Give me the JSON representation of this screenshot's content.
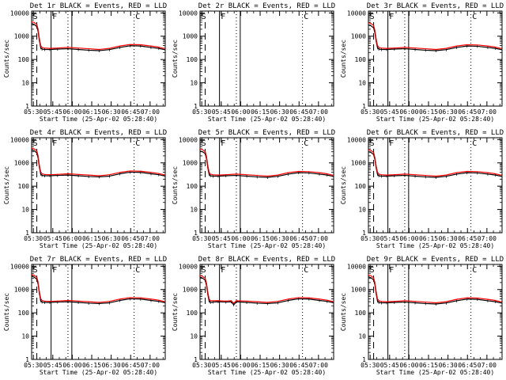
{
  "figure": {
    "background": "#ffffff",
    "event_color": "#000000",
    "lld_color": "#ff0000"
  },
  "common": {
    "xlabel": "Start Time (25-Apr-02 05:28:40)",
    "ylabel": "Counts/sec",
    "xtick_labels": [
      "05:30",
      "05:45",
      "06:00",
      "06:15",
      "06:30",
      "06:45",
      "07:00"
    ],
    "ytick_labels": [
      "1",
      "10",
      "100",
      "1000",
      "10000"
    ],
    "marker_labels": [
      "S",
      "F",
      "C"
    ]
  },
  "chart_data": [
    {
      "type": "line",
      "title": "Det 1r BLACK = Events, RED = LLD",
      "x_unit": "minutes after 05:28:40",
      "xlim": [
        0,
        103
      ],
      "ylim": [
        1,
        12000
      ],
      "y_scale": "log",
      "x": [
        0,
        2,
        4,
        5,
        6,
        7,
        8,
        10,
        14,
        20,
        28,
        36,
        44,
        52,
        60,
        68,
        76,
        84,
        92,
        98,
        103
      ],
      "series": [
        {
          "name": "Events",
          "color": "#000000",
          "values": [
            3500,
            3200,
            2600,
            1600,
            650,
            320,
            280,
            270,
            270,
            280,
            290,
            270,
            250,
            240,
            265,
            330,
            390,
            380,
            330,
            300,
            260
          ]
        },
        {
          "name": "LLD",
          "color": "#ff0000",
          "values": [
            4200,
            3900,
            3200,
            2000,
            800,
            400,
            330,
            310,
            300,
            310,
            330,
            310,
            290,
            270,
            300,
            380,
            440,
            430,
            380,
            340,
            290
          ]
        }
      ],
      "markers": {
        "dashed": [
          4
        ],
        "dotted": [
          28,
          79
        ],
        "solid": [
          15,
          31
        ],
        "labels": [
          {
            "text": "S",
            "x": 1
          },
          {
            "text": "F",
            "x": 16
          },
          {
            "text": "C",
            "x": 80
          }
        ]
      }
    },
    {
      "type": "line",
      "title": "Det 2r BLACK = Events, RED = LLD",
      "x_unit": "minutes after 05:28:40",
      "xlim": [
        0,
        103
      ],
      "ylim": [
        1,
        12000
      ],
      "y_scale": "log",
      "x": [],
      "series": [],
      "markers": {
        "dashed": [
          4
        ],
        "dotted": [
          28,
          79
        ],
        "solid": [
          15,
          31
        ],
        "labels": [
          {
            "text": "S",
            "x": 1
          },
          {
            "text": "F",
            "x": 16
          },
          {
            "text": "C",
            "x": 80
          }
        ]
      }
    },
    {
      "type": "line",
      "title": "Det 3r BLACK = Events, RED = LLD",
      "x_unit": "minutes after 05:28:40",
      "xlim": [
        0,
        103
      ],
      "ylim": [
        1,
        12000
      ],
      "y_scale": "log",
      "x": [
        0,
        2,
        4,
        5,
        6,
        7,
        8,
        10,
        14,
        20,
        28,
        36,
        44,
        52,
        60,
        68,
        76,
        84,
        92,
        98,
        103
      ],
      "series": [
        {
          "name": "Events",
          "color": "#000000",
          "values": [
            3000,
            2800,
            2300,
            1400,
            600,
            320,
            280,
            270,
            270,
            280,
            290,
            270,
            250,
            240,
            265,
            330,
            380,
            370,
            330,
            300,
            260
          ]
        },
        {
          "name": "LLD",
          "color": "#ff0000",
          "values": [
            3800,
            3500,
            2900,
            1800,
            750,
            400,
            330,
            310,
            300,
            310,
            330,
            310,
            290,
            270,
            300,
            380,
            430,
            420,
            380,
            340,
            290
          ]
        }
      ],
      "markers": {
        "dashed": [
          4
        ],
        "dotted": [
          28,
          79
        ],
        "solid": [
          15,
          31
        ],
        "labels": [
          {
            "text": "S",
            "x": 1
          },
          {
            "text": "F",
            "x": 16
          },
          {
            "text": "C",
            "x": 80
          }
        ]
      }
    },
    {
      "type": "line",
      "title": "Det 4r BLACK = Events, RED = LLD",
      "x_unit": "minutes after 05:28:40",
      "xlim": [
        0,
        103
      ],
      "ylim": [
        1,
        12000
      ],
      "y_scale": "log",
      "x": [
        0,
        2,
        4,
        5,
        6,
        7,
        8,
        10,
        14,
        20,
        28,
        36,
        44,
        52,
        60,
        68,
        76,
        84,
        92,
        98,
        103
      ],
      "series": [
        {
          "name": "Events",
          "color": "#000000",
          "values": [
            3600,
            3300,
            2700,
            1600,
            650,
            330,
            290,
            280,
            280,
            290,
            300,
            280,
            260,
            250,
            270,
            340,
            400,
            390,
            340,
            310,
            270
          ]
        },
        {
          "name": "LLD",
          "color": "#ff0000",
          "values": [
            4300,
            4000,
            3300,
            2000,
            800,
            410,
            340,
            320,
            310,
            320,
            340,
            320,
            300,
            280,
            310,
            390,
            450,
            440,
            390,
            350,
            300
          ]
        }
      ],
      "markers": {
        "dashed": [
          4
        ],
        "dotted": [
          28,
          79
        ],
        "solid": [
          15,
          31
        ],
        "labels": [
          {
            "text": "S",
            "x": 1
          },
          {
            "text": "F",
            "x": 16
          },
          {
            "text": "C",
            "x": 80
          }
        ]
      }
    },
    {
      "type": "line",
      "title": "Det 5r BLACK = Events, RED = LLD",
      "x_unit": "minutes after 05:28:40",
      "xlim": [
        0,
        103
      ],
      "ylim": [
        1,
        12000
      ],
      "y_scale": "log",
      "x": [
        0,
        2,
        4,
        5,
        6,
        7,
        8,
        10,
        14,
        20,
        28,
        36,
        44,
        52,
        60,
        68,
        76,
        84,
        92,
        98,
        103
      ],
      "series": [
        {
          "name": "Events",
          "color": "#000000",
          "values": [
            3200,
            3000,
            2500,
            1500,
            620,
            320,
            280,
            270,
            270,
            280,
            290,
            270,
            250,
            240,
            265,
            330,
            380,
            370,
            330,
            300,
            260
          ]
        },
        {
          "name": "LLD",
          "color": "#ff0000",
          "values": [
            4000,
            3700,
            3000,
            1900,
            780,
            400,
            330,
            310,
            300,
            310,
            330,
            310,
            290,
            270,
            300,
            380,
            430,
            420,
            380,
            340,
            290
          ]
        }
      ],
      "markers": {
        "dashed": [
          4
        ],
        "dotted": [
          28,
          79
        ],
        "solid": [
          15,
          31
        ],
        "labels": [
          {
            "text": "S",
            "x": 1
          },
          {
            "text": "F",
            "x": 16
          },
          {
            "text": "C",
            "x": 80
          }
        ]
      }
    },
    {
      "type": "line",
      "title": "Det 6r BLACK = Events, RED = LLD",
      "x_unit": "minutes after 05:28:40",
      "xlim": [
        0,
        103
      ],
      "ylim": [
        1,
        12000
      ],
      "y_scale": "log",
      "x": [
        0,
        2,
        4,
        5,
        6,
        7,
        8,
        10,
        14,
        20,
        28,
        36,
        44,
        52,
        60,
        68,
        76,
        84,
        92,
        98,
        103
      ],
      "series": [
        {
          "name": "Events",
          "color": "#000000",
          "values": [
            3000,
            2800,
            2300,
            1400,
            600,
            320,
            280,
            270,
            270,
            280,
            290,
            270,
            250,
            240,
            265,
            330,
            380,
            370,
            330,
            300,
            260
          ]
        },
        {
          "name": "LLD",
          "color": "#ff0000",
          "values": [
            3700,
            3400,
            2800,
            1700,
            740,
            400,
            330,
            310,
            300,
            310,
            330,
            310,
            290,
            270,
            300,
            380,
            430,
            420,
            380,
            340,
            290
          ]
        }
      ],
      "markers": {
        "dashed": [
          4
        ],
        "dotted": [
          28,
          79
        ],
        "solid": [
          15,
          31
        ],
        "labels": [
          {
            "text": "S",
            "x": 1
          },
          {
            "text": "F",
            "x": 16
          },
          {
            "text": "C",
            "x": 80
          }
        ]
      }
    },
    {
      "type": "line",
      "title": "Det 7r BLACK = Events, RED = LLD",
      "x_unit": "minutes after 05:28:40",
      "xlim": [
        0,
        103
      ],
      "ylim": [
        1,
        12000
      ],
      "y_scale": "log",
      "x": [
        0,
        2,
        4,
        5,
        6,
        7,
        8,
        10,
        14,
        20,
        28,
        36,
        44,
        52,
        60,
        68,
        76,
        84,
        92,
        98,
        103
      ],
      "series": [
        {
          "name": "Events",
          "color": "#000000",
          "values": [
            3700,
            3400,
            2800,
            1700,
            680,
            330,
            290,
            280,
            280,
            290,
            300,
            280,
            260,
            250,
            270,
            340,
            400,
            390,
            340,
            310,
            270
          ]
        },
        {
          "name": "LLD",
          "color": "#ff0000",
          "values": [
            4400,
            4100,
            3400,
            2100,
            820,
            410,
            340,
            320,
            310,
            320,
            340,
            320,
            300,
            280,
            310,
            390,
            450,
            440,
            390,
            350,
            300
          ]
        }
      ],
      "markers": {
        "dashed": [
          4
        ],
        "dotted": [
          28,
          79
        ],
        "solid": [
          15,
          31
        ],
        "labels": [
          {
            "text": "S",
            "x": 1
          },
          {
            "text": "F",
            "x": 16
          },
          {
            "text": "C",
            "x": 80
          }
        ]
      }
    },
    {
      "type": "line",
      "title": "Det 8r BLACK = Events, RED = LLD",
      "x_unit": "minutes after 05:28:40",
      "xlim": [
        0,
        103
      ],
      "ylim": [
        1,
        12000
      ],
      "y_scale": "log",
      "x": [
        0,
        2,
        4,
        5,
        6,
        7,
        8,
        10,
        14,
        20,
        24,
        26,
        28,
        36,
        44,
        52,
        60,
        68,
        76,
        84,
        92,
        98,
        103
      ],
      "series": [
        {
          "name": "Events",
          "color": "#000000",
          "values": [
            3400,
            3100,
            2500,
            1500,
            620,
            320,
            280,
            290,
            300,
            290,
            300,
            220,
            300,
            280,
            260,
            250,
            270,
            340,
            400,
            390,
            340,
            310,
            270
          ]
        },
        {
          "name": "LLD",
          "color": "#ff0000",
          "values": [
            4000,
            3700,
            3000,
            1900,
            780,
            400,
            330,
            330,
            330,
            320,
            330,
            260,
            330,
            320,
            300,
            280,
            310,
            390,
            450,
            440,
            390,
            350,
            300
          ]
        }
      ],
      "markers": {
        "dashed": [
          4
        ],
        "dotted": [
          28,
          79
        ],
        "solid": [
          15,
          31
        ],
        "labels": [
          {
            "text": "S",
            "x": 1
          },
          {
            "text": "F",
            "x": 16
          },
          {
            "text": "C",
            "x": 80
          }
        ]
      }
    },
    {
      "type": "line",
      "title": "Det 9r BLACK = Events, RED = LLD",
      "x_unit": "minutes after 05:28:40",
      "xlim": [
        0,
        103
      ],
      "ylim": [
        1,
        12000
      ],
      "y_scale": "log",
      "x": [
        0,
        2,
        4,
        5,
        6,
        7,
        8,
        10,
        14,
        20,
        28,
        36,
        44,
        52,
        60,
        68,
        76,
        84,
        92,
        98,
        103
      ],
      "series": [
        {
          "name": "Events",
          "color": "#000000",
          "values": [
            3500,
            3200,
            2600,
            1600,
            650,
            320,
            280,
            270,
            270,
            280,
            290,
            270,
            250,
            240,
            265,
            330,
            390,
            380,
            330,
            300,
            260
          ]
        },
        {
          "name": "LLD",
          "color": "#ff0000",
          "values": [
            4200,
            3900,
            3200,
            2000,
            800,
            400,
            330,
            310,
            300,
            310,
            330,
            310,
            290,
            270,
            300,
            380,
            440,
            430,
            380,
            340,
            290
          ]
        }
      ],
      "markers": {
        "dashed": [
          4
        ],
        "dotted": [
          28,
          79
        ],
        "solid": [
          15,
          31
        ],
        "labels": [
          {
            "text": "S",
            "x": 1
          },
          {
            "text": "F",
            "x": 16
          },
          {
            "text": "C",
            "x": 80
          }
        ]
      }
    }
  ]
}
